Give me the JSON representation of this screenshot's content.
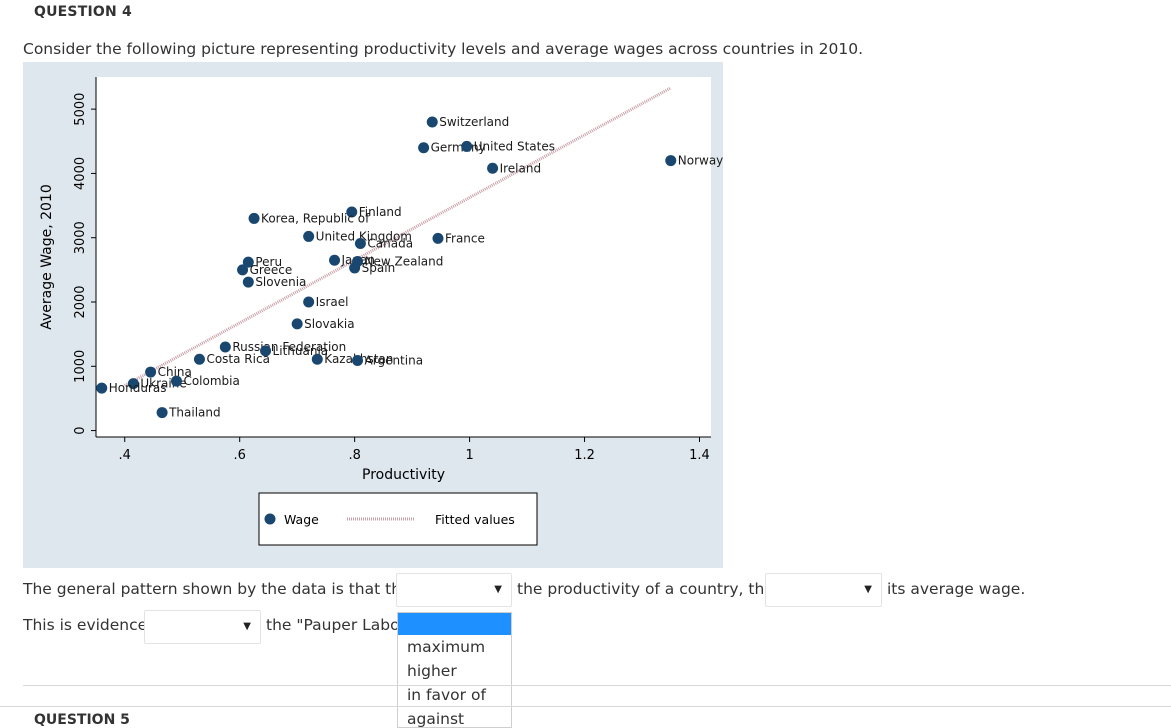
{
  "question": {
    "header": "QUESTION 4",
    "prompt": "Consider the following picture representing productivity levels and average wages across countries in 2010."
  },
  "chart_data": {
    "type": "scatter",
    "xlabel": "Productivity",
    "ylabel": "Average Wage, 2010",
    "xlim": [
      0.35,
      1.42
    ],
    "ylim": [
      -100,
      5500
    ],
    "xticks": [
      0.4,
      0.6,
      0.8,
      1,
      1.2,
      1.4
    ],
    "xtick_labels": [
      ".4",
      ".6",
      ".8",
      "1",
      "1.2",
      "1.4"
    ],
    "yticks": [
      0,
      1000,
      2000,
      3000,
      4000,
      5000
    ],
    "ytick_labels": [
      "0",
      "1000",
      "2000",
      "3000",
      "4000",
      "5000"
    ],
    "grid": false,
    "background": "#dfe7ee",
    "marker_color": "#1a476f",
    "fit_color": "#c8a0a8",
    "legend_placement": "bottom",
    "legend": [
      {
        "label": "Wage",
        "kind": "marker"
      },
      {
        "label": "Fitted values",
        "kind": "line"
      }
    ],
    "points": [
      {
        "label": "Norway",
        "x": 1.35,
        "y": 4200
      },
      {
        "label": "Switzerland",
        "x": 0.935,
        "y": 4800
      },
      {
        "label": "Germany",
        "x": 0.92,
        "y": 4400
      },
      {
        "label": "United States",
        "x": 0.995,
        "y": 4420
      },
      {
        "label": "Ireland",
        "x": 1.04,
        "y": 4080
      },
      {
        "label": "Finland",
        "x": 0.795,
        "y": 3400
      },
      {
        "label": "Korea, Republic of",
        "x": 0.625,
        "y": 3300
      },
      {
        "label": "United Kingdom",
        "x": 0.72,
        "y": 3020
      },
      {
        "label": "Canada",
        "x": 0.81,
        "y": 2910
      },
      {
        "label": "France",
        "x": 0.945,
        "y": 2990
      },
      {
        "label": "Japan",
        "x": 0.765,
        "y": 2650
      },
      {
        "label": "New Zealand",
        "x": 0.805,
        "y": 2630
      },
      {
        "label": "Spain",
        "x": 0.8,
        "y": 2530
      },
      {
        "label": "Peru",
        "x": 0.615,
        "y": 2620
      },
      {
        "label": "Greece",
        "x": 0.605,
        "y": 2500
      },
      {
        "label": "Slovenia",
        "x": 0.615,
        "y": 2310
      },
      {
        "label": "Israel",
        "x": 0.72,
        "y": 2000
      },
      {
        "label": "Slovakia",
        "x": 0.7,
        "y": 1660
      },
      {
        "label": "Russian Federation",
        "x": 0.575,
        "y": 1300
      },
      {
        "label": "Lithuania",
        "x": 0.645,
        "y": 1240
      },
      {
        "label": "Kazakhstan",
        "x": 0.735,
        "y": 1110
      },
      {
        "label": "Argentina",
        "x": 0.805,
        "y": 1090
      },
      {
        "label": "Costa Rica",
        "x": 0.53,
        "y": 1110
      },
      {
        "label": "China",
        "x": 0.445,
        "y": 910
      },
      {
        "label": "Ukraine",
        "x": 0.415,
        "y": 730
      },
      {
        "label": "Colombia",
        "x": 0.49,
        "y": 770
      },
      {
        "label": "Honduras",
        "x": 0.36,
        "y": 660
      },
      {
        "label": "Thailand",
        "x": 0.465,
        "y": 280
      }
    ],
    "fitted_line": {
      "x": [
        0.4,
        1.35
      ],
      "y": [
        700,
        5330
      ]
    }
  },
  "sentence1": {
    "before": "The general pattern shown by the data is that the",
    "middle": "the productivity of a country, the",
    "after": "its average wage."
  },
  "sentence2": {
    "before": "This is evidence",
    "after": "the \"Pauper Labo"
  },
  "dropdown_open": {
    "options": [
      "maximum",
      "higher",
      "in favor of",
      "against"
    ]
  },
  "next_question": "QUESTION 5",
  "icons": {
    "caret": "caret-down-icon"
  }
}
